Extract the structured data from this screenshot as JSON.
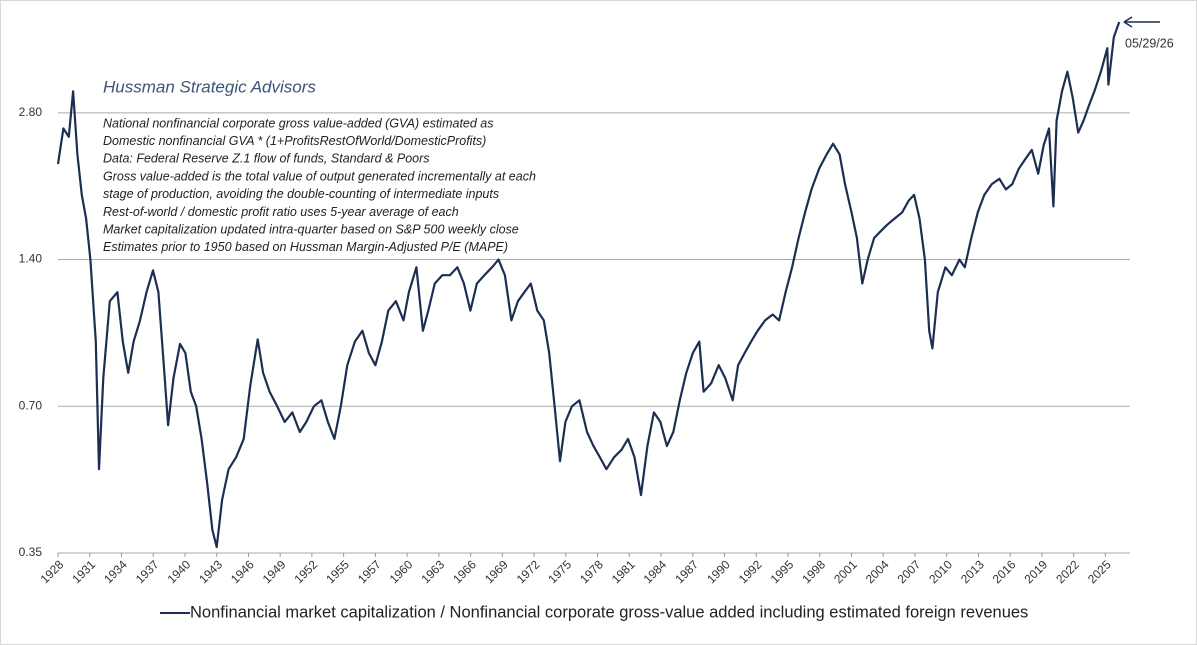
{
  "chart_data": {
    "type": "line",
    "title": "Hussman Strategic Advisors",
    "notes": [
      "National nonfinancial corporate gross value-added (GVA) estimated as",
      "Domestic nonfinancial GVA * (1+ProfitsRestOfWorld/DomesticProfits)",
      "Data: Federal Reserve Z.1 flow of funds, Standard & Poors",
      "Gross value-added is the total value of output generated incrementally at each",
      "stage of production, avoiding the double-counting  of intermediate inputs",
      "Rest-of-world / domestic profit ratio uses 5-year average of each",
      "Market capitalization updated intra-quarter based on S&P 500 weekly close",
      "Estimates prior to 1950 based on Hussman Margin-Adjusted  P/E (MAPE)"
    ],
    "annotations": [
      "05/29/26"
    ],
    "log_scale": true,
    "grid": true,
    "xlim": [
      1928,
      2027.3
    ],
    "ylim": [
      0.35,
      4.66
    ],
    "yticks": [
      0.35,
      {
        "value": 0.7,
        "label": "0.70"
      },
      {
        "value": 1.4,
        "label": "1.40"
      },
      {
        "value": 2.8,
        "label": "2.80"
      }
    ],
    "xticks": [
      {
        "value": 1928,
        "label": "1928"
      },
      {
        "value": 1930.94,
        "label": "1931"
      },
      {
        "value": 1933.88,
        "label": "1934"
      },
      {
        "value": 1936.82,
        "label": "1937"
      },
      {
        "value": 1939.76,
        "label": "1940"
      },
      {
        "value": 1942.7,
        "label": "1943"
      },
      {
        "value": 1945.64,
        "label": "1946"
      },
      {
        "value": 1948.58,
        "label": "1949"
      },
      {
        "value": 1951.52,
        "label": "1952"
      },
      {
        "value": 1954.46,
        "label": "1955"
      },
      {
        "value": 1957.4,
        "label": "1957"
      },
      {
        "value": 1960.34,
        "label": "1960"
      },
      {
        "value": 1963.28,
        "label": "1963"
      },
      {
        "value": 1966.22,
        "label": "1966"
      },
      {
        "value": 1969.16,
        "label": "1969"
      },
      {
        "value": 1972.1,
        "label": "1972"
      },
      {
        "value": 1975.04,
        "label": "1975"
      },
      {
        "value": 1977.98,
        "label": "1978"
      },
      {
        "value": 1980.92,
        "label": "1981"
      },
      {
        "value": 1983.86,
        "label": "1984"
      },
      {
        "value": 1986.8,
        "label": "1987"
      },
      {
        "value": 1989.74,
        "label": "1990"
      },
      {
        "value": 1992.68,
        "label": "1992"
      },
      {
        "value": 1995.62,
        "label": "1995"
      },
      {
        "value": 1998.56,
        "label": "1998"
      },
      {
        "value": 2001.5,
        "label": "2001"
      },
      {
        "value": 2004.44,
        "label": "2004"
      },
      {
        "value": 2007.38,
        "label": "2007"
      },
      {
        "value": 2010.32,
        "label": "2010"
      },
      {
        "value": 2013.26,
        "label": "2013"
      },
      {
        "value": 2016.2,
        "label": "2016"
      },
      {
        "value": 2019.14,
        "label": "2019"
      },
      {
        "value": 2022.08,
        "label": "2022"
      },
      {
        "value": 2025.02,
        "label": "2025"
      }
    ],
    "x": [
      1928.0,
      1928.5,
      1929.0,
      1929.4,
      1929.8,
      1930.2,
      1930.6,
      1931.0,
      1931.5,
      1931.8,
      1932.2,
      1932.8,
      1933.5,
      1934.0,
      1934.5,
      1935.0,
      1935.6,
      1936.2,
      1936.8,
      1937.3,
      1937.8,
      1938.2,
      1938.7,
      1939.3,
      1939.8,
      1940.3,
      1940.8,
      1941.3,
      1941.8,
      1942.3,
      1942.7,
      1943.2,
      1943.8,
      1944.5,
      1945.2,
      1945.8,
      1946.5,
      1947.0,
      1947.6,
      1948.3,
      1949.0,
      1949.7,
      1950.4,
      1951.0,
      1951.7,
      1952.4,
      1953.0,
      1953.6,
      1954.2,
      1954.8,
      1955.5,
      1956.2,
      1956.8,
      1957.4,
      1958.0,
      1958.6,
      1959.3,
      1960.0,
      1960.5,
      1961.2,
      1961.8,
      1962.3,
      1962.9,
      1963.6,
      1964.3,
      1965.0,
      1965.6,
      1966.2,
      1966.8,
      1967.5,
      1968.2,
      1968.8,
      1969.4,
      1970.0,
      1970.6,
      1971.2,
      1971.8,
      1972.4,
      1973.0,
      1973.5,
      1974.0,
      1974.5,
      1975.0,
      1975.6,
      1976.3,
      1977.0,
      1977.6,
      1978.2,
      1978.8,
      1979.5,
      1980.2,
      1980.8,
      1981.4,
      1982.0,
      1982.6,
      1983.2,
      1983.8,
      1984.4,
      1985.0,
      1985.6,
      1986.2,
      1986.8,
      1987.4,
      1987.8,
      1988.5,
      1989.2,
      1989.8,
      1990.5,
      1991.0,
      1991.6,
      1992.2,
      1992.8,
      1993.5,
      1994.2,
      1994.8,
      1995.4,
      1996.0,
      1996.6,
      1997.2,
      1997.8,
      1998.5,
      1999.2,
      1999.8,
      2000.4,
      2000.9,
      2001.5,
      2002.0,
      2002.5,
      2003.0,
      2003.6,
      2004.2,
      2004.8,
      2005.5,
      2006.2,
      2006.8,
      2007.3,
      2007.8,
      2008.3,
      2008.7,
      2009.0,
      2009.5,
      2010.2,
      2010.8,
      2011.5,
      2012.0,
      2012.6,
      2013.2,
      2013.8,
      2014.5,
      2015.2,
      2015.8,
      2016.4,
      2017.0,
      2017.6,
      2018.2,
      2018.8,
      2019.3,
      2019.8,
      2020.2,
      2020.5,
      2021.0,
      2021.5,
      2022.0,
      2022.5,
      2023.0,
      2023.5,
      2024.0,
      2024.6,
      2025.2,
      2025.3,
      2025.8,
      2026.3
    ],
    "series": [
      {
        "name": "Nonfinancial market capitalization / Nonfinancial corporate gross-value added including estimated foreign revenues",
        "color": "#1c2f52",
        "values": [
          2.2,
          2.6,
          2.5,
          3.1,
          2.3,
          1.9,
          1.7,
          1.4,
          0.95,
          0.52,
          0.8,
          1.15,
          1.2,
          0.95,
          0.82,
          0.95,
          1.05,
          1.2,
          1.33,
          1.2,
          0.85,
          0.64,
          0.8,
          0.94,
          0.9,
          0.75,
          0.7,
          0.6,
          0.49,
          0.39,
          0.36,
          0.45,
          0.52,
          0.55,
          0.6,
          0.77,
          0.96,
          0.82,
          0.75,
          0.7,
          0.65,
          0.68,
          0.62,
          0.65,
          0.7,
          0.72,
          0.65,
          0.6,
          0.7,
          0.85,
          0.95,
          1.0,
          0.9,
          0.85,
          0.95,
          1.1,
          1.15,
          1.05,
          1.2,
          1.35,
          1.0,
          1.1,
          1.25,
          1.3,
          1.3,
          1.35,
          1.25,
          1.1,
          1.25,
          1.3,
          1.35,
          1.4,
          1.3,
          1.05,
          1.15,
          1.2,
          1.25,
          1.1,
          1.05,
          0.9,
          0.7,
          0.54,
          0.65,
          0.7,
          0.72,
          0.62,
          0.58,
          0.55,
          0.52,
          0.55,
          0.57,
          0.6,
          0.55,
          0.46,
          0.58,
          0.68,
          0.65,
          0.58,
          0.62,
          0.72,
          0.82,
          0.9,
          0.95,
          0.75,
          0.78,
          0.85,
          0.8,
          0.72,
          0.85,
          0.9,
          0.95,
          1.0,
          1.05,
          1.08,
          1.05,
          1.2,
          1.35,
          1.55,
          1.75,
          1.95,
          2.15,
          2.3,
          2.42,
          2.3,
          2.0,
          1.75,
          1.55,
          1.25,
          1.4,
          1.55,
          1.6,
          1.65,
          1.7,
          1.75,
          1.85,
          1.9,
          1.7,
          1.4,
          1.0,
          0.92,
          1.2,
          1.35,
          1.3,
          1.4,
          1.35,
          1.55,
          1.75,
          1.9,
          2.0,
          2.05,
          1.95,
          2.0,
          2.15,
          2.25,
          2.35,
          2.1,
          2.4,
          2.6,
          1.8,
          2.7,
          3.1,
          3.4,
          3.0,
          2.55,
          2.7,
          2.9,
          3.1,
          3.4,
          3.8,
          3.2,
          4.0,
          4.3
        ]
      }
    ]
  }
}
